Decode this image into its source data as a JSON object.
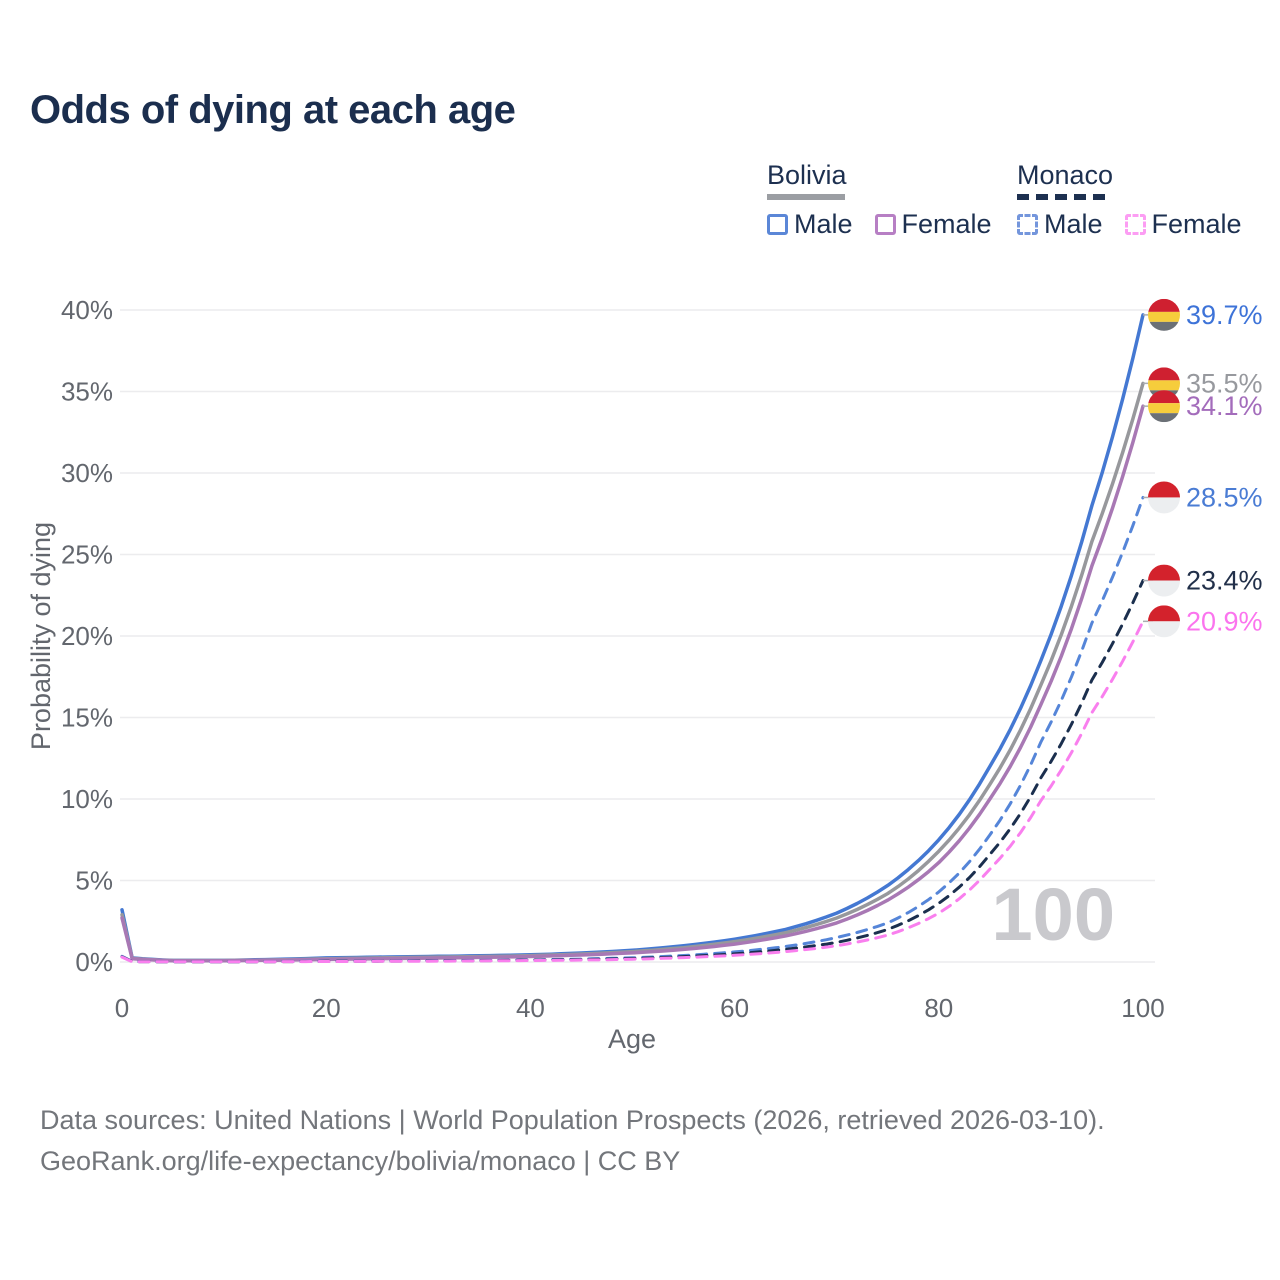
{
  "title": "Odds of dying at each age",
  "legend": {
    "groups": [
      {
        "country": "Bolivia",
        "underline_style": "solid",
        "underline_color": "#9b9ea3",
        "items": [
          {
            "label": "Male",
            "color": "#5b87d7",
            "dash": "solid"
          },
          {
            "label": "Female",
            "color": "#b77fc4",
            "dash": "solid"
          }
        ]
      },
      {
        "country": "Monaco",
        "underline_style": "dashed",
        "underline_color": "#1d3050",
        "items": [
          {
            "label": "Male",
            "color": "#7496dc",
            "dash": "dashed"
          },
          {
            "label": "Female",
            "color": "#fc9df3",
            "dash": "dashed"
          }
        ]
      }
    ]
  },
  "chart_data": {
    "type": "line",
    "title": "Odds of dying at each age",
    "xlabel": "Age",
    "ylabel": "Probability of dying",
    "xlim": [
      0,
      100
    ],
    "ylim": [
      0,
      40
    ],
    "grid": "horizontal",
    "legend_position": "top-right",
    "watermark": "100",
    "x_ticks": [
      {
        "value": 0,
        "label": "0"
      },
      {
        "value": 20,
        "label": "20"
      },
      {
        "value": 40,
        "label": "40"
      },
      {
        "value": 60,
        "label": "60"
      },
      {
        "value": 80,
        "label": "80"
      },
      {
        "value": 100,
        "label": "100"
      }
    ],
    "y_ticks": [
      {
        "value": 0,
        "label": "0%"
      },
      {
        "value": 5,
        "label": "5%"
      },
      {
        "value": 10,
        "label": "10%"
      },
      {
        "value": 15,
        "label": "15%"
      },
      {
        "value": 20,
        "label": "20%"
      },
      {
        "value": 25,
        "label": "25%"
      },
      {
        "value": 30,
        "label": "30%"
      },
      {
        "value": 35,
        "label": "35%"
      },
      {
        "value": 40,
        "label": "40%"
      }
    ],
    "ages": [
      0,
      1,
      5,
      10,
      15,
      20,
      25,
      30,
      35,
      40,
      45,
      50,
      55,
      60,
      65,
      70,
      75,
      80,
      85,
      90,
      95,
      100
    ],
    "series": [
      {
        "name": "Bolivia Male",
        "country": "Bolivia",
        "sex": "Male",
        "line_style": "solid",
        "color": "#4478d2",
        "label_color": "#3d73d8",
        "flag": "bolivia",
        "end_label": "39.7%",
        "values": [
          3.2,
          0.25,
          0.1,
          0.1,
          0.16,
          0.25,
          0.3,
          0.34,
          0.38,
          0.44,
          0.55,
          0.72,
          1.0,
          1.4,
          2.0,
          3.0,
          4.7,
          7.5,
          12.0,
          18.5,
          28.0,
          39.7
        ]
      },
      {
        "name": "Bolivia Both sexes",
        "country": "Bolivia",
        "sex": "Both",
        "line_style": "solid",
        "color": "#97989c",
        "label_color": "#97999e",
        "flag": "bolivia",
        "end_label": "35.5%",
        "values": [
          2.9,
          0.22,
          0.09,
          0.09,
          0.13,
          0.2,
          0.25,
          0.29,
          0.33,
          0.39,
          0.49,
          0.64,
          0.88,
          1.25,
          1.8,
          2.7,
          4.2,
          6.8,
          10.9,
          17.0,
          25.8,
          35.5
        ]
      },
      {
        "name": "Bolivia Female",
        "country": "Bolivia",
        "sex": "Female",
        "line_style": "solid",
        "color": "#a878b4",
        "label_color": "#a36cbb",
        "flag": "bolivia",
        "end_label": "34.1%",
        "values": [
          2.7,
          0.2,
          0.08,
          0.08,
          0.11,
          0.16,
          0.2,
          0.24,
          0.28,
          0.34,
          0.43,
          0.56,
          0.77,
          1.1,
          1.6,
          2.4,
          3.8,
          6.1,
          10.0,
          15.8,
          24.3,
          34.1
        ]
      },
      {
        "name": "Monaco Male",
        "country": "Monaco",
        "sex": "Male",
        "line_style": "dashed",
        "color": "#5585d8",
        "label_color": "#4a7cd4",
        "flag": "monaco",
        "end_label": "28.5%",
        "values": [
          0.35,
          0.03,
          0.01,
          0.01,
          0.03,
          0.05,
          0.06,
          0.08,
          0.1,
          0.13,
          0.18,
          0.26,
          0.4,
          0.62,
          0.95,
          1.5,
          2.4,
          4.3,
          7.8,
          13.5,
          20.8,
          28.5
        ]
      },
      {
        "name": "Monaco Both sexes",
        "country": "Monaco",
        "sex": "Both",
        "line_style": "dashed",
        "color": "#1b2f4e",
        "label_color": "#22304a",
        "flag": "monaco",
        "end_label": "23.4%",
        "values": [
          0.32,
          0.03,
          0.01,
          0.01,
          0.02,
          0.04,
          0.05,
          0.07,
          0.08,
          0.11,
          0.15,
          0.21,
          0.33,
          0.5,
          0.78,
          1.2,
          2.0,
          3.6,
          6.6,
          11.3,
          17.3,
          23.4
        ]
      },
      {
        "name": "Monaco Female",
        "country": "Monaco",
        "sex": "Female",
        "line_style": "dashed",
        "color": "#f97fee",
        "label_color": "#fb74ee",
        "flag": "monaco",
        "end_label": "20.9%",
        "values": [
          0.3,
          0.02,
          0.01,
          0.01,
          0.02,
          0.03,
          0.04,
          0.05,
          0.07,
          0.09,
          0.12,
          0.17,
          0.27,
          0.41,
          0.64,
          1.0,
          1.65,
          3.0,
          5.7,
          9.9,
          15.3,
          20.9
        ]
      }
    ],
    "flag_colors": {
      "bolivia": [
        "#cf2030",
        "#f6cd3c",
        "#6b7076"
      ],
      "monaco": [
        "#d3222c",
        "#eceef0"
      ]
    }
  },
  "footer": {
    "line1": "Data sources: United Nations | World Population Prospects (2026, retrieved 2026-03-10).",
    "line2": "GeoRank.org/life-expectancy/bolivia/monaco | CC BY"
  }
}
